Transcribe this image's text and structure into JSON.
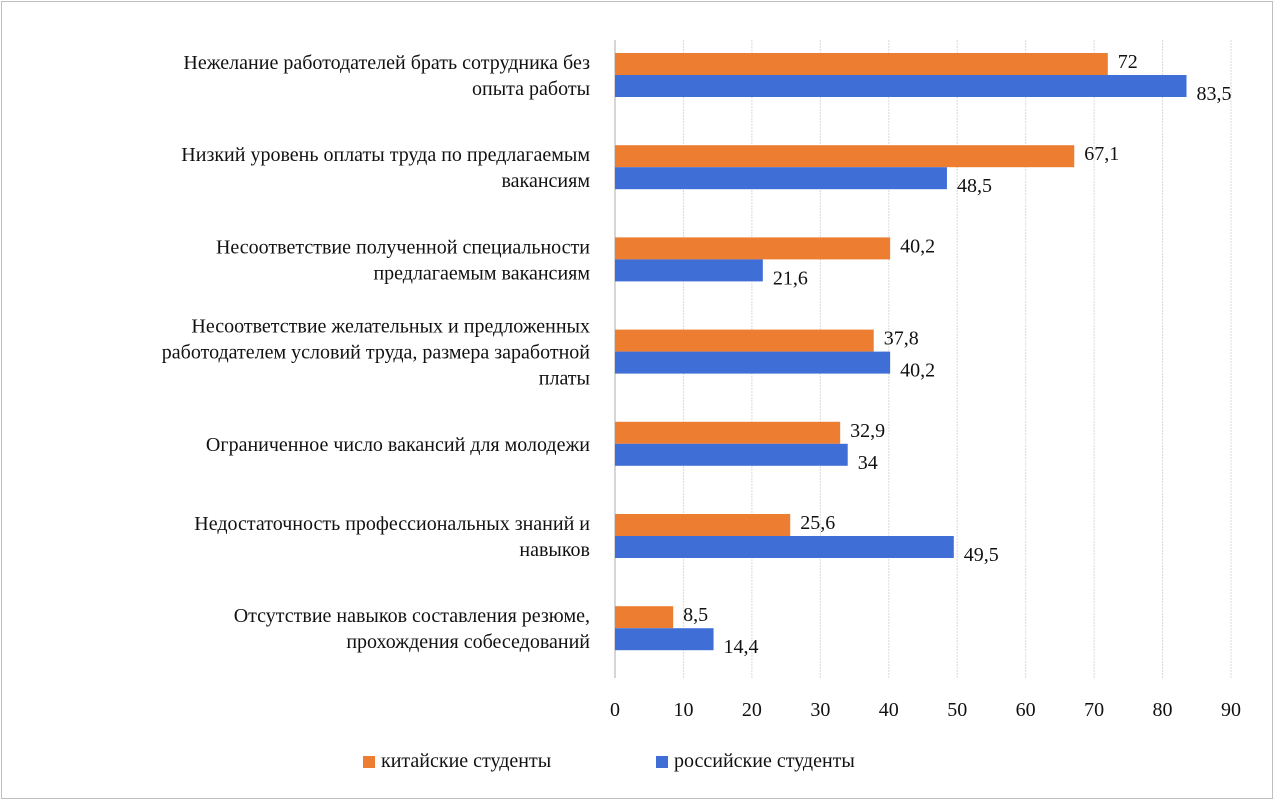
{
  "chart_data": {
    "type": "bar",
    "orientation": "horizontal",
    "title": "",
    "categories": [
      [
        "Нежелание  работодателей  брать сотрудника  без",
        "опыта работы"
      ],
      [
        "Низкий уровень оплаты труда по предлагаемым",
        "вакансиям"
      ],
      [
        "Несоответствие  полученной специальности",
        "предлагаемым вакансиям"
      ],
      [
        "Несоответствие  желательных  и предложенных",
        "работодателем условий труда, размера заработной",
        "платы"
      ],
      [
        "Ограниченное число вакансий для молодежи"
      ],
      [
        "Недостаточность  профессиональных знаний и",
        "навыков"
      ],
      [
        "Отсутствие  навыков составления резюме,",
        "прохождения  собеседований"
      ]
    ],
    "series": [
      {
        "name": "китайские  студенты",
        "color": "#ED7D31",
        "values": [
          72,
          67.1,
          40.2,
          37.8,
          32.9,
          25.6,
          8.5
        ],
        "labels": [
          "72",
          "67,1",
          "40,2",
          "37,8",
          "32,9",
          "25,6",
          "8,5"
        ]
      },
      {
        "name": "российские студенты",
        "color": "#3F6FD6",
        "values": [
          83.5,
          48.5,
          21.6,
          40.2,
          34,
          49.5,
          14.4
        ],
        "labels": [
          "83,5",
          "48,5",
          "21,6",
          "40,2",
          "34",
          "49,5",
          "14,4"
        ]
      }
    ],
    "xlim": [
      0,
      90
    ],
    "xticks": [
      "0",
      "10",
      "20",
      "30",
      "40",
      "50",
      "60",
      "70",
      "80",
      "90"
    ],
    "grid": true,
    "legend_position": "bottom"
  }
}
